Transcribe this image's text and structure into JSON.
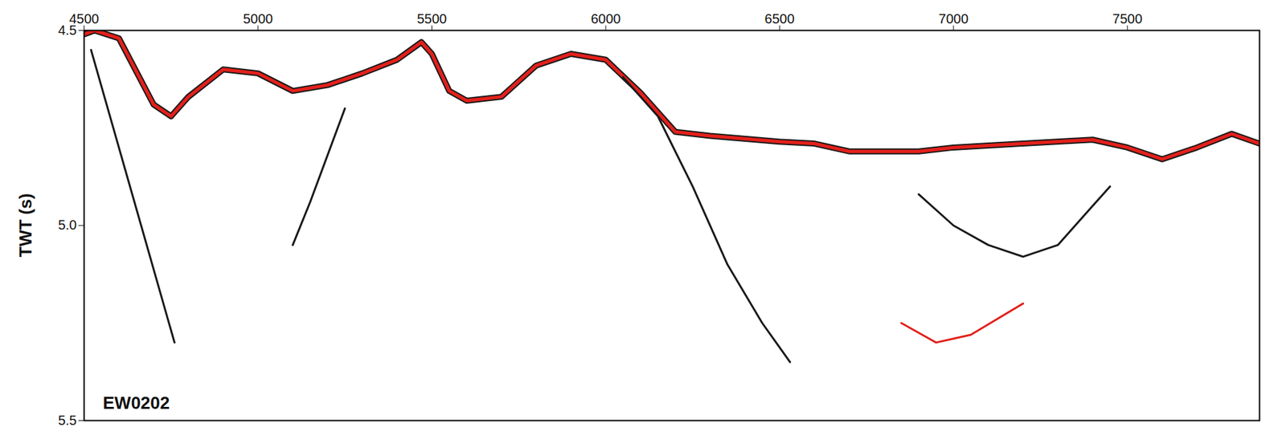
{
  "chart_data": {
    "type": "line",
    "y_label": "TWT (s)",
    "annotations": [
      "EW0202"
    ],
    "xlim": [
      4500,
      7880
    ],
    "xticks": [
      4500,
      5000,
      5500,
      6000,
      6500,
      7000,
      7500
    ],
    "ylim": [
      4.5,
      5.5
    ],
    "yticks": [
      4.5,
      {
        "value": 5,
        "label": "5.0"
      },
      5.5
    ],
    "grid": false,
    "series": [
      {
        "color": "#e3201b",
        "x": [
          4500,
          4530,
          4600,
          4700,
          4750,
          4800,
          4900,
          5000,
          5100,
          5200,
          5300,
          5400,
          5470,
          5500,
          5550,
          5600,
          5700,
          5800,
          5900,
          6000,
          6100,
          6200,
          6300,
          6500,
          6600,
          6700,
          6900,
          7000,
          7200,
          7400,
          7500,
          7600,
          7700,
          7800,
          7880
        ],
        "values": [
          4.51,
          4.5,
          4.52,
          4.69,
          4.72,
          4.67,
          4.6,
          4.61,
          4.655,
          4.64,
          4.61,
          4.575,
          4.53,
          4.56,
          4.655,
          4.68,
          4.67,
          4.59,
          4.56,
          4.575,
          4.66,
          4.76,
          4.77,
          4.785,
          4.79,
          4.81,
          4.81,
          4.8,
          4.79,
          4.78,
          4.8,
          4.83,
          4.8,
          4.765,
          4.79
        ]
      },
      {
        "color": "#1a1a1a",
        "x": [
          6050,
          6150,
          6250,
          6350,
          6450,
          6530
        ],
        "values": [
          4.62,
          4.72,
          4.9,
          5.1,
          5.25,
          5.35
        ]
      },
      {
        "color": "#1a1a1a",
        "x": [
          4520,
          4600,
          4680,
          4760
        ],
        "values": [
          4.55,
          4.8,
          5.05,
          5.3
        ]
      },
      {
        "color": "#1a1a1a",
        "x": [
          6900,
          7000,
          7100,
          7200,
          7300,
          7400,
          7450
        ],
        "values": [
          4.92,
          5.0,
          5.05,
          5.08,
          5.05,
          4.95,
          4.9
        ]
      },
      {
        "color": "#e3201b",
        "x": [
          6850,
          6950,
          7050,
          7200
        ],
        "values": [
          5.25,
          5.3,
          5.28,
          5.2
        ]
      },
      {
        "color": "#1a1a1a",
        "x": [
          5250,
          5200,
          5150,
          5100
        ],
        "values": [
          4.7,
          4.82,
          4.94,
          5.05
        ]
      }
    ]
  }
}
